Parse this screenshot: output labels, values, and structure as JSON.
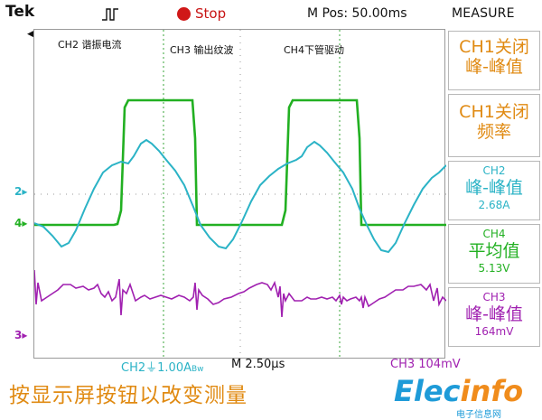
{
  "header": {
    "brand": "Tek",
    "trigger_icon": "trigger-pulse-icon",
    "run_state": "Stop",
    "m_pos": "M Pos: 50.00ms",
    "menu_title": "MEASURE"
  },
  "overlay": {
    "ch2_label": "CH2 谐振电流",
    "ch3_label": "CH3 输出纹波",
    "ch4_label": "CH4下管驱动"
  },
  "markers": {
    "ch2": "2",
    "ch4": "4",
    "ch3": "3",
    "marker_glyph": "▸"
  },
  "measure": {
    "box1": {
      "line1": "CH1关闭",
      "line2": "峰-峰值"
    },
    "box2": {
      "line1": "CH1关闭",
      "line2": "频率"
    },
    "box3": {
      "line1": "CH2",
      "line2": "峰-峰值",
      "value": "2.68A"
    },
    "box4": {
      "line1": "CH4",
      "line2": "平均值",
      "value": "5.13V"
    },
    "box5": {
      "line1": "CH3",
      "line2": "峰-峰值",
      "value": "164mV"
    }
  },
  "readouts": {
    "ch2_scale": "CH2",
    "ch2_value": "1.00A",
    "ch2_bw": "Bw",
    "time_scale": "M 2.50",
    "time_unit": "µs",
    "ch3_scale": "CH3",
    "ch3_value": "104mV"
  },
  "footer": {
    "hint": "按显示屏按钮以改变测量",
    "logo_main": "Elec",
    "logo_accent": "info",
    "logo_sub": "电子信息网"
  },
  "colors": {
    "ch2": "#2bb3c6",
    "ch3": "#a020b0",
    "ch4": "#22b022",
    "orange": "#e08a12",
    "stop": "#c81414"
  }
}
